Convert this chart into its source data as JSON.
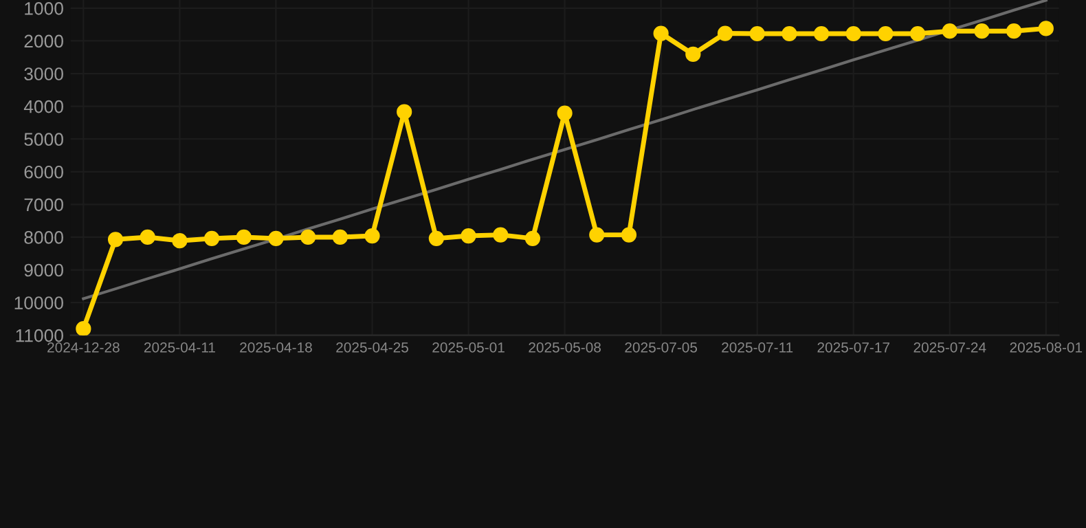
{
  "chart_data": {
    "type": "line",
    "categories": [
      "2024-12-28",
      null,
      null,
      "2025-04-11",
      null,
      null,
      "2025-04-18",
      null,
      null,
      "2025-04-25",
      null,
      null,
      "2025-05-01",
      null,
      null,
      "2025-05-08",
      null,
      null,
      "2025-07-05",
      null,
      null,
      "2025-07-11",
      null,
      null,
      "2025-07-17",
      null,
      null,
      "2025-07-24",
      null,
      null,
      "2025-08-01"
    ],
    "series": [
      {
        "color": "#ffd200",
        "marker": "circle",
        "values": [
          10800,
          8070,
          8000,
          8110,
          8040,
          8000,
          8040,
          8000,
          8000,
          7960,
          4170,
          8040,
          7960,
          7930,
          8040,
          4210,
          7930,
          7930,
          1770,
          2410,
          1770,
          1780,
          1780,
          1780,
          1780,
          1780,
          1780,
          1700,
          1700,
          1700,
          1620
        ]
      },
      {
        "color": "#6b6b6b",
        "marker": "none",
        "values": [
          9880,
          9580,
          9270,
          8970,
          8660,
          8360,
          8060,
          7750,
          7450,
          7140,
          6840,
          6540,
          6230,
          5930,
          5620,
          5320,
          5020,
          4710,
          4410,
          4100,
          3800,
          3500,
          3190,
          2890,
          2580,
          2280,
          1980,
          1670,
          1370,
          1060,
          760
        ]
      }
    ],
    "ylim": [
      11000,
      750
    ],
    "yticks": [
      1000,
      2000,
      3000,
      4000,
      5000,
      6000,
      7000,
      8000,
      9000,
      10000,
      11000
    ],
    "grid": true
  }
}
